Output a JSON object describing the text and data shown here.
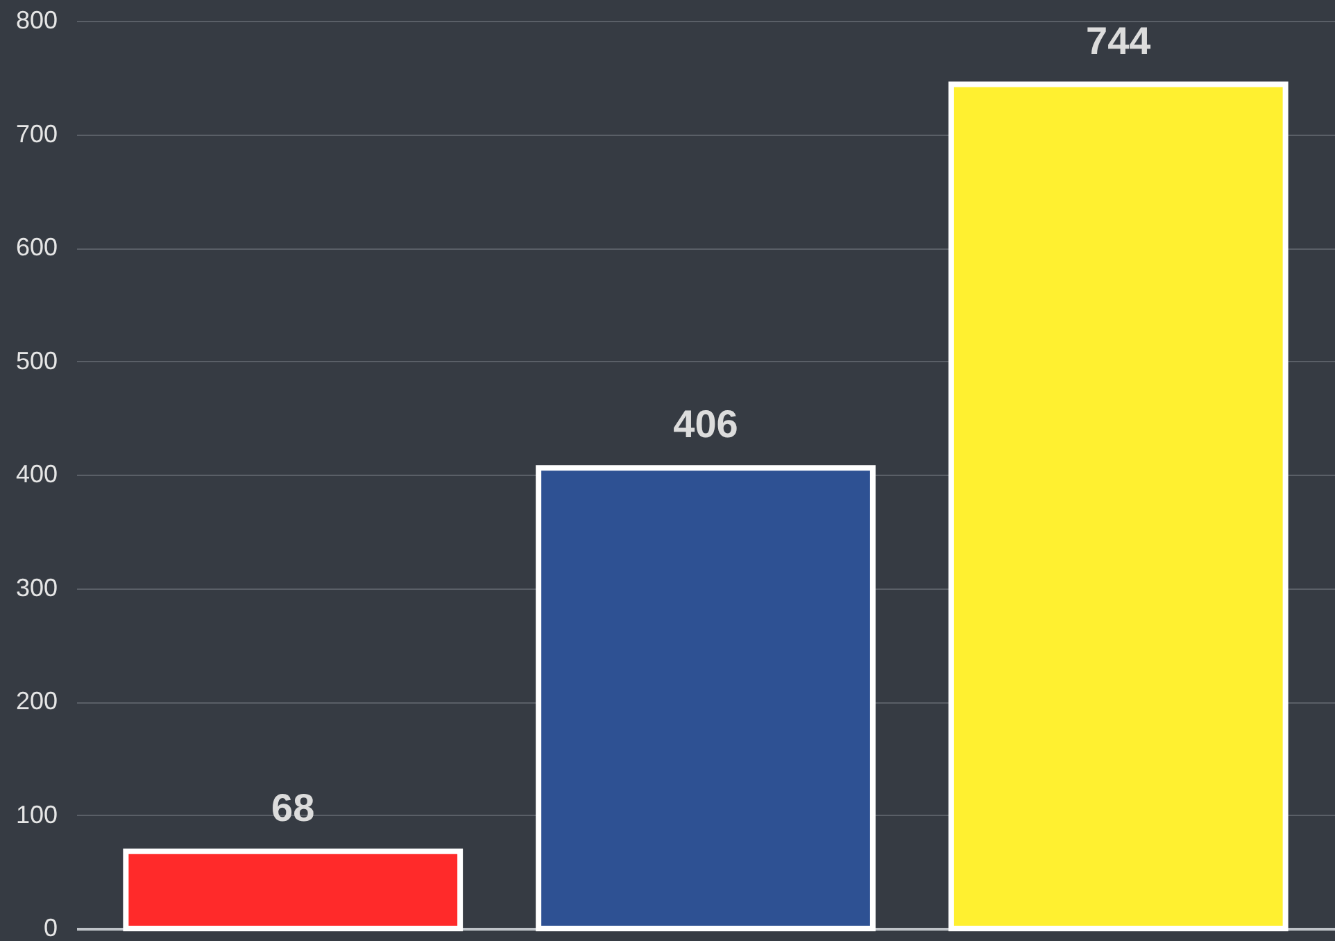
{
  "chart_data": {
    "type": "bar",
    "categories": [
      null,
      null,
      null
    ],
    "values": [
      68,
      406,
      744
    ],
    "colors": [
      "#ff2a2a",
      "#2e5193",
      "#fff030"
    ],
    "ylim": [
      0,
      800
    ],
    "yticks": [
      0,
      100,
      200,
      300,
      400,
      500,
      600,
      700,
      800
    ],
    "grid": "y",
    "data_labels": true
  }
}
